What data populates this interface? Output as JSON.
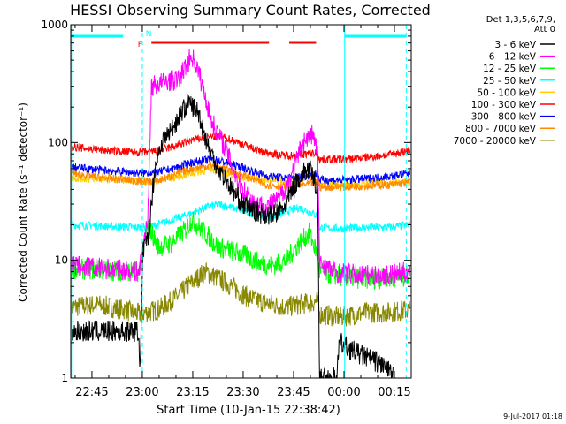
{
  "chart_data": {
    "type": "line",
    "title": "HESSI Observing Summary Count Rates, Corrected",
    "xlabel": "Start Time (10-Jan-15 22:38:42)",
    "ylabel": "Corrected Count Rate (s⁻¹ detector⁻¹)",
    "yscale": "log",
    "ylim": [
      1,
      1000
    ],
    "xlim_minutes_after_2238": [
      0,
      101.3
    ],
    "y_ticks": [
      "1",
      "10",
      "100",
      "1000"
    ],
    "x_ticks": [
      {
        "label": "22:45",
        "t": 6.3
      },
      {
        "label": "23:00",
        "t": 21.3
      },
      {
        "label": "23:15",
        "t": 36.3
      },
      {
        "label": "23:30",
        "t": 51.3
      },
      {
        "label": "23:45",
        "t": 66.3
      },
      {
        "label": "00:00",
        "t": 81.3
      },
      {
        "label": "00:15",
        "t": 96.3
      }
    ],
    "legend_header": [
      "Det 1,3,5,6,7,9,",
      "Att 0"
    ],
    "legend_position": "right-outside",
    "series": [
      {
        "name": "3 - 6 keV",
        "color": "#000000",
        "points": [
          [
            0,
            2.5
          ],
          [
            20.3,
            2.5
          ],
          [
            20.6,
            1
          ],
          [
            21.5,
            12
          ],
          [
            23,
            15
          ],
          [
            25,
            60
          ],
          [
            27,
            100
          ],
          [
            30,
            130
          ],
          [
            33,
            180
          ],
          [
            35,
            220
          ],
          [
            38,
            180
          ],
          [
            41,
            90
          ],
          [
            44,
            60
          ],
          [
            48,
            40
          ],
          [
            51,
            30
          ],
          [
            56,
            25
          ],
          [
            60,
            24
          ],
          [
            63,
            27
          ],
          [
            65,
            35
          ],
          [
            67,
            45
          ],
          [
            69,
            55
          ],
          [
            71,
            60
          ],
          [
            73.5,
            40
          ],
          [
            74,
            1
          ],
          [
            79,
            1
          ],
          [
            80,
            2
          ],
          [
            84,
            1.7
          ],
          [
            88,
            1.5
          ],
          [
            93,
            1.3
          ],
          [
            96,
            1
          ]
        ]
      },
      {
        "name": "6 - 12 keV",
        "color": "#ff00ff",
        "points": [
          [
            0,
            9
          ],
          [
            20.3,
            8
          ],
          [
            21.5,
            12
          ],
          [
            23,
            25
          ],
          [
            24,
            300
          ],
          [
            28,
            330
          ],
          [
            32,
            340
          ],
          [
            36,
            550
          ],
          [
            38,
            400
          ],
          [
            42,
            150
          ],
          [
            46,
            90
          ],
          [
            50,
            45
          ],
          [
            54,
            32
          ],
          [
            58,
            28
          ],
          [
            62,
            33
          ],
          [
            66,
            55
          ],
          [
            69,
            100
          ],
          [
            72,
            120
          ],
          [
            73.5,
            80
          ],
          [
            74,
            10
          ],
          [
            78,
            8
          ],
          [
            86,
            7.5
          ],
          [
            94,
            7.5
          ],
          [
            101,
            8
          ]
        ]
      },
      {
        "name": "12 - 25 keV",
        "color": "#00ff00",
        "points": [
          [
            0,
            8.5
          ],
          [
            20.3,
            8
          ],
          [
            21,
            10
          ],
          [
            23,
            20
          ],
          [
            26,
            13
          ],
          [
            30,
            14
          ],
          [
            34,
            18
          ],
          [
            36,
            22
          ],
          [
            40,
            17
          ],
          [
            44,
            13
          ],
          [
            48,
            12
          ],
          [
            52,
            11
          ],
          [
            56,
            9.5
          ],
          [
            60,
            9
          ],
          [
            64,
            10
          ],
          [
            68,
            14
          ],
          [
            71,
            17
          ],
          [
            73.5,
            11
          ],
          [
            74,
            8
          ],
          [
            78,
            7.5
          ],
          [
            86,
            7
          ],
          [
            94,
            7
          ],
          [
            101,
            7.5
          ]
        ]
      },
      {
        "name": "25 - 50 keV",
        "color": "#00ffff",
        "points": [
          [
            0,
            20
          ],
          [
            20.3,
            19
          ],
          [
            23,
            19
          ],
          [
            30,
            22
          ],
          [
            36,
            25
          ],
          [
            40,
            28
          ],
          [
            44,
            30
          ],
          [
            48,
            28
          ],
          [
            52,
            26
          ],
          [
            56,
            24
          ],
          [
            60,
            23
          ],
          [
            64,
            26
          ],
          [
            68,
            28
          ],
          [
            73.5,
            24
          ],
          [
            74,
            19
          ],
          [
            80,
            18.5
          ],
          [
            88,
            19
          ],
          [
            94,
            19
          ],
          [
            101,
            20
          ]
        ]
      },
      {
        "name": "50 - 100 keV",
        "color": "#ffcc00",
        "points": [
          [
            0,
            50
          ],
          [
            20.3,
            48
          ],
          [
            23,
            47
          ],
          [
            30,
            50
          ],
          [
            36,
            55
          ],
          [
            42,
            60
          ],
          [
            46,
            55
          ],
          [
            52,
            50
          ],
          [
            58,
            48
          ],
          [
            64,
            48
          ],
          [
            70,
            50
          ],
          [
            73.5,
            52
          ],
          [
            74,
            45
          ],
          [
            82,
            44
          ],
          [
            90,
            45
          ],
          [
            101,
            46
          ]
        ]
      },
      {
        "name": "100 - 300 keV",
        "color": "#ff0000",
        "points": [
          [
            0,
            92
          ],
          [
            10,
            86
          ],
          [
            20.3,
            82
          ],
          [
            26,
            85
          ],
          [
            32,
            95
          ],
          [
            36,
            105
          ],
          [
            42,
            112
          ],
          [
            46,
            110
          ],
          [
            50,
            100
          ],
          [
            56,
            85
          ],
          [
            62,
            78
          ],
          [
            66,
            78
          ],
          [
            70,
            80
          ],
          [
            73.5,
            82
          ],
          [
            74,
            72
          ],
          [
            82,
            72
          ],
          [
            90,
            76
          ],
          [
            96,
            80
          ],
          [
            101,
            86
          ]
        ]
      },
      {
        "name": "300 - 800 keV",
        "color": "#0000ff",
        "points": [
          [
            0,
            62
          ],
          [
            10,
            58
          ],
          [
            20.3,
            55
          ],
          [
            26,
            56
          ],
          [
            32,
            62
          ],
          [
            36,
            68
          ],
          [
            42,
            72
          ],
          [
            46,
            68
          ],
          [
            52,
            60
          ],
          [
            58,
            52
          ],
          [
            64,
            50
          ],
          [
            70,
            52
          ],
          [
            73.5,
            55
          ],
          [
            74,
            48
          ],
          [
            82,
            48
          ],
          [
            90,
            50
          ],
          [
            96,
            52
          ],
          [
            101,
            55
          ]
        ]
      },
      {
        "name": "800 - 7000 keV",
        "color": "#ff8800",
        "points": [
          [
            0,
            55
          ],
          [
            10,
            50
          ],
          [
            20.3,
            47
          ],
          [
            26,
            47
          ],
          [
            32,
            55
          ],
          [
            36,
            60
          ],
          [
            42,
            64
          ],
          [
            46,
            60
          ],
          [
            52,
            52
          ],
          [
            58,
            44
          ],
          [
            64,
            42
          ],
          [
            70,
            44
          ],
          [
            73.5,
            46
          ],
          [
            74,
            42
          ],
          [
            82,
            42
          ],
          [
            90,
            43
          ],
          [
            96,
            44
          ],
          [
            101,
            46
          ]
        ]
      },
      {
        "name": "7000 - 20000 keV",
        "color": "#888800",
        "points": [
          [
            0,
            4
          ],
          [
            8,
            4.2
          ],
          [
            16,
            3.8
          ],
          [
            20.3,
            3.5
          ],
          [
            26,
            3.8
          ],
          [
            32,
            5
          ],
          [
            36,
            6.5
          ],
          [
            40,
            8
          ],
          [
            44,
            7
          ],
          [
            48,
            6
          ],
          [
            52,
            5
          ],
          [
            56,
            4.5
          ],
          [
            60,
            4.2
          ],
          [
            64,
            4
          ],
          [
            70,
            4.3
          ],
          [
            73.5,
            4.5
          ],
          [
            74,
            3.5
          ],
          [
            80,
            3.3
          ],
          [
            88,
            3.6
          ],
          [
            94,
            3.6
          ],
          [
            101,
            3.8
          ]
        ]
      }
    ],
    "segments": [
      {
        "label": "N",
        "color": "#00ffff",
        "y": 1000,
        "ranges": [
          [
            0,
            15.6
          ],
          [
            81.5,
            99.8
          ]
        ],
        "label_at": 21.5
      },
      {
        "label": "F",
        "color": "#ff0000",
        "y": 900,
        "ranges": [
          [
            24,
            59
          ],
          [
            65,
            73
          ]
        ],
        "label_at": 21.5
      }
    ],
    "vertical_markers": [
      {
        "t": 21.3,
        "color": "#00ffff",
        "style": "dashed"
      },
      {
        "t": 99.8,
        "color": "#00ffff",
        "style": "dashed"
      },
      {
        "t": 0.2,
        "color": "#00ffff",
        "style": "solid"
      },
      {
        "t": 81.5,
        "color": "#00ffff",
        "style": "solid"
      }
    ]
  },
  "footer": {
    "timestamp": "9-Jul-2017 01:18"
  }
}
